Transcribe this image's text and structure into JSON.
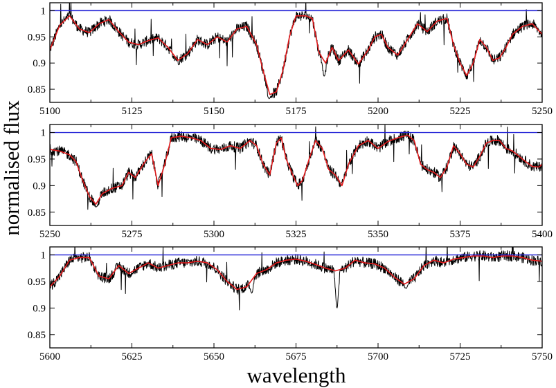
{
  "chart_data": {
    "type": "line",
    "xlabel": "wavelength",
    "ylabel": "normalised flux",
    "grid": false,
    "legend": "none",
    "colors": {
      "observed": "#000000",
      "model": "#e41a1c",
      "continuum": "#1f1fd6"
    },
    "series_roles": [
      "observed spectrum (black)",
      "model spectrum (red)",
      "continuum level (blue)"
    ],
    "panels": [
      {
        "id": "panel-1",
        "xlim": [
          5100,
          5250
        ],
        "ylim": [
          0.825,
          1.015
        ],
        "xticks": [
          5100,
          5125,
          5150,
          5175,
          5200,
          5225,
          5250
        ],
        "yticks": [
          0.85,
          0.9,
          0.95,
          1
        ],
        "continuum": 1.0,
        "model": [
          [
            5100,
            0.925
          ],
          [
            5103,
            0.972
          ],
          [
            5106,
            0.99
          ],
          [
            5109,
            0.965
          ],
          [
            5112,
            0.958
          ],
          [
            5115,
            0.975
          ],
          [
            5118,
            0.983
          ],
          [
            5121,
            0.96
          ],
          [
            5124,
            0.94
          ],
          [
            5127,
            0.935
          ],
          [
            5130,
            0.943
          ],
          [
            5133,
            0.948
          ],
          [
            5136,
            0.93
          ],
          [
            5139,
            0.905
          ],
          [
            5142,
            0.918
          ],
          [
            5145,
            0.945
          ],
          [
            5148,
            0.935
          ],
          [
            5151,
            0.95
          ],
          [
            5154,
            0.94
          ],
          [
            5157,
            0.965
          ],
          [
            5160,
            0.97
          ],
          [
            5163,
            0.935
          ],
          [
            5165,
            0.885
          ],
          [
            5167,
            0.84
          ],
          [
            5169,
            0.845
          ],
          [
            5171,
            0.885
          ],
          [
            5173,
            0.95
          ],
          [
            5175,
            0.99
          ],
          [
            5178,
            0.99
          ],
          [
            5180,
            0.985
          ],
          [
            5182,
            0.92
          ],
          [
            5184,
            0.9
          ],
          [
            5186,
            0.93
          ],
          [
            5188,
            0.905
          ],
          [
            5191,
            0.925
          ],
          [
            5194,
            0.898
          ],
          [
            5197,
            0.925
          ],
          [
            5199,
            0.95
          ],
          [
            5201,
            0.955
          ],
          [
            5203,
            0.93
          ],
          [
            5206,
            0.915
          ],
          [
            5209,
            0.945
          ],
          [
            5212,
            0.975
          ],
          [
            5215,
            0.96
          ],
          [
            5218,
            0.98
          ],
          [
            5221,
            0.985
          ],
          [
            5223,
            0.935
          ],
          [
            5225,
            0.9
          ],
          [
            5227,
            0.876
          ],
          [
            5229,
            0.9
          ],
          [
            5231,
            0.945
          ],
          [
            5233,
            0.93
          ],
          [
            5235,
            0.905
          ],
          [
            5237,
            0.91
          ],
          [
            5239,
            0.93
          ],
          [
            5241,
            0.955
          ],
          [
            5244,
            0.97
          ],
          [
            5247,
            0.975
          ],
          [
            5250,
            0.955
          ]
        ],
        "observed_extra_dips": [
          [
            5166.8,
            0.832
          ],
          [
            5183.6,
            0.875
          ]
        ]
      },
      {
        "id": "panel-2",
        "xlim": [
          5250,
          5400
        ],
        "ylim": [
          0.825,
          1.015
        ],
        "xticks": [
          5250,
          5275,
          5300,
          5325,
          5350,
          5375,
          5400
        ],
        "yticks": [
          0.85,
          0.9,
          0.95,
          1
        ],
        "continuum": 1.0,
        "model": [
          [
            5250,
            0.968
          ],
          [
            5253,
            0.965
          ],
          [
            5256,
            0.958
          ],
          [
            5258,
            0.945
          ],
          [
            5260,
            0.91
          ],
          [
            5262,
            0.88
          ],
          [
            5264,
            0.865
          ],
          [
            5266,
            0.885
          ],
          [
            5269,
            0.895
          ],
          [
            5272,
            0.9
          ],
          [
            5274,
            0.925
          ],
          [
            5276,
            0.915
          ],
          [
            5279,
            0.945
          ],
          [
            5281,
            0.96
          ],
          [
            5283,
            0.9
          ],
          [
            5285,
            0.94
          ],
          [
            5287,
            0.99
          ],
          [
            5290,
            0.993
          ],
          [
            5293,
            0.99
          ],
          [
            5296,
            0.985
          ],
          [
            5299,
            0.97
          ],
          [
            5302,
            0.968
          ],
          [
            5305,
            0.975
          ],
          [
            5308,
            0.97
          ],
          [
            5311,
            0.985
          ],
          [
            5313,
            0.975
          ],
          [
            5315,
            0.94
          ],
          [
            5317,
            0.92
          ],
          [
            5319,
            0.98
          ],
          [
            5320.5,
            0.99
          ],
          [
            5322,
            0.95
          ],
          [
            5324,
            0.92
          ],
          [
            5325.5,
            0.9
          ],
          [
            5327,
            0.91
          ],
          [
            5329,
            0.95
          ],
          [
            5331,
            0.985
          ],
          [
            5333,
            0.97
          ],
          [
            5335,
            0.93
          ],
          [
            5337,
            0.92
          ],
          [
            5339,
            0.9
          ],
          [
            5341,
            0.94
          ],
          [
            5344,
            0.975
          ],
          [
            5347,
            0.985
          ],
          [
            5350,
            0.97
          ],
          [
            5353,
            0.983
          ],
          [
            5356,
            0.99
          ],
          [
            5359,
            0.995
          ],
          [
            5361,
            0.985
          ],
          [
            5363,
            0.94
          ],
          [
            5365,
            0.93
          ],
          [
            5367,
            0.925
          ],
          [
            5369,
            0.915
          ],
          [
            5371,
            0.935
          ],
          [
            5373,
            0.975
          ],
          [
            5375,
            0.96
          ],
          [
            5377,
            0.94
          ],
          [
            5379,
            0.935
          ],
          [
            5381,
            0.955
          ],
          [
            5383,
            0.98
          ],
          [
            5385,
            0.985
          ],
          [
            5387,
            0.985
          ],
          [
            5389,
            0.97
          ],
          [
            5391,
            0.965
          ],
          [
            5393,
            0.955
          ],
          [
            5395,
            0.945
          ],
          [
            5397,
            0.936
          ],
          [
            5399,
            0.935
          ],
          [
            5400,
            0.94
          ]
        ],
        "observed_extra_dips": [
          [
            5264.2,
            0.86
          ]
        ]
      },
      {
        "id": "panel-3",
        "xlim": [
          5600,
          5750
        ],
        "ylim": [
          0.825,
          1.015
        ],
        "xticks": [
          5600,
          5625,
          5650,
          5675,
          5700,
          5725,
          5750
        ],
        "yticks": [
          0.85,
          0.9,
          0.95,
          1
        ],
        "continuum": 1.0,
        "model": [
          [
            5600,
            0.94
          ],
          [
            5603,
            0.96
          ],
          [
            5606,
            0.99
          ],
          [
            5609,
            0.995
          ],
          [
            5612,
            0.995
          ],
          [
            5615,
            0.96
          ],
          [
            5618,
            0.955
          ],
          [
            5621,
            0.98
          ],
          [
            5624,
            0.965
          ],
          [
            5627,
            0.975
          ],
          [
            5630,
            0.985
          ],
          [
            5633,
            0.975
          ],
          [
            5636,
            0.98
          ],
          [
            5639,
            0.985
          ],
          [
            5642,
            0.985
          ],
          [
            5645,
            0.988
          ],
          [
            5648,
            0.985
          ],
          [
            5651,
            0.972
          ],
          [
            5654,
            0.95
          ],
          [
            5657,
            0.935
          ],
          [
            5660,
            0.94
          ],
          [
            5663,
            0.965
          ],
          [
            5666,
            0.972
          ],
          [
            5669,
            0.985
          ],
          [
            5672,
            0.99
          ],
          [
            5675,
            0.992
          ],
          [
            5678,
            0.988
          ],
          [
            5681,
            0.982
          ],
          [
            5684,
            0.975
          ],
          [
            5687,
            0.97
          ],
          [
            5690,
            0.975
          ],
          [
            5693,
            0.99
          ],
          [
            5696,
            0.985
          ],
          [
            5699,
            0.983
          ],
          [
            5702,
            0.975
          ],
          [
            5705,
            0.958
          ],
          [
            5708,
            0.945
          ],
          [
            5711,
            0.955
          ],
          [
            5714,
            0.98
          ],
          [
            5717,
            0.99
          ],
          [
            5720,
            0.985
          ],
          [
            5723,
            0.992
          ],
          [
            5726,
            0.995
          ],
          [
            5729,
            0.998
          ],
          [
            5732,
            0.998
          ],
          [
            5735,
            0.995
          ],
          [
            5738,
            0.998
          ],
          [
            5741,
            0.998
          ],
          [
            5744,
            0.995
          ],
          [
            5747,
            0.99
          ],
          [
            5750,
            0.988
          ]
        ],
        "observed_extra_dips": [
          [
            5661.5,
            0.928
          ],
          [
            5708.6,
            0.937
          ],
          [
            5687.5,
            0.9
          ]
        ]
      }
    ]
  }
}
